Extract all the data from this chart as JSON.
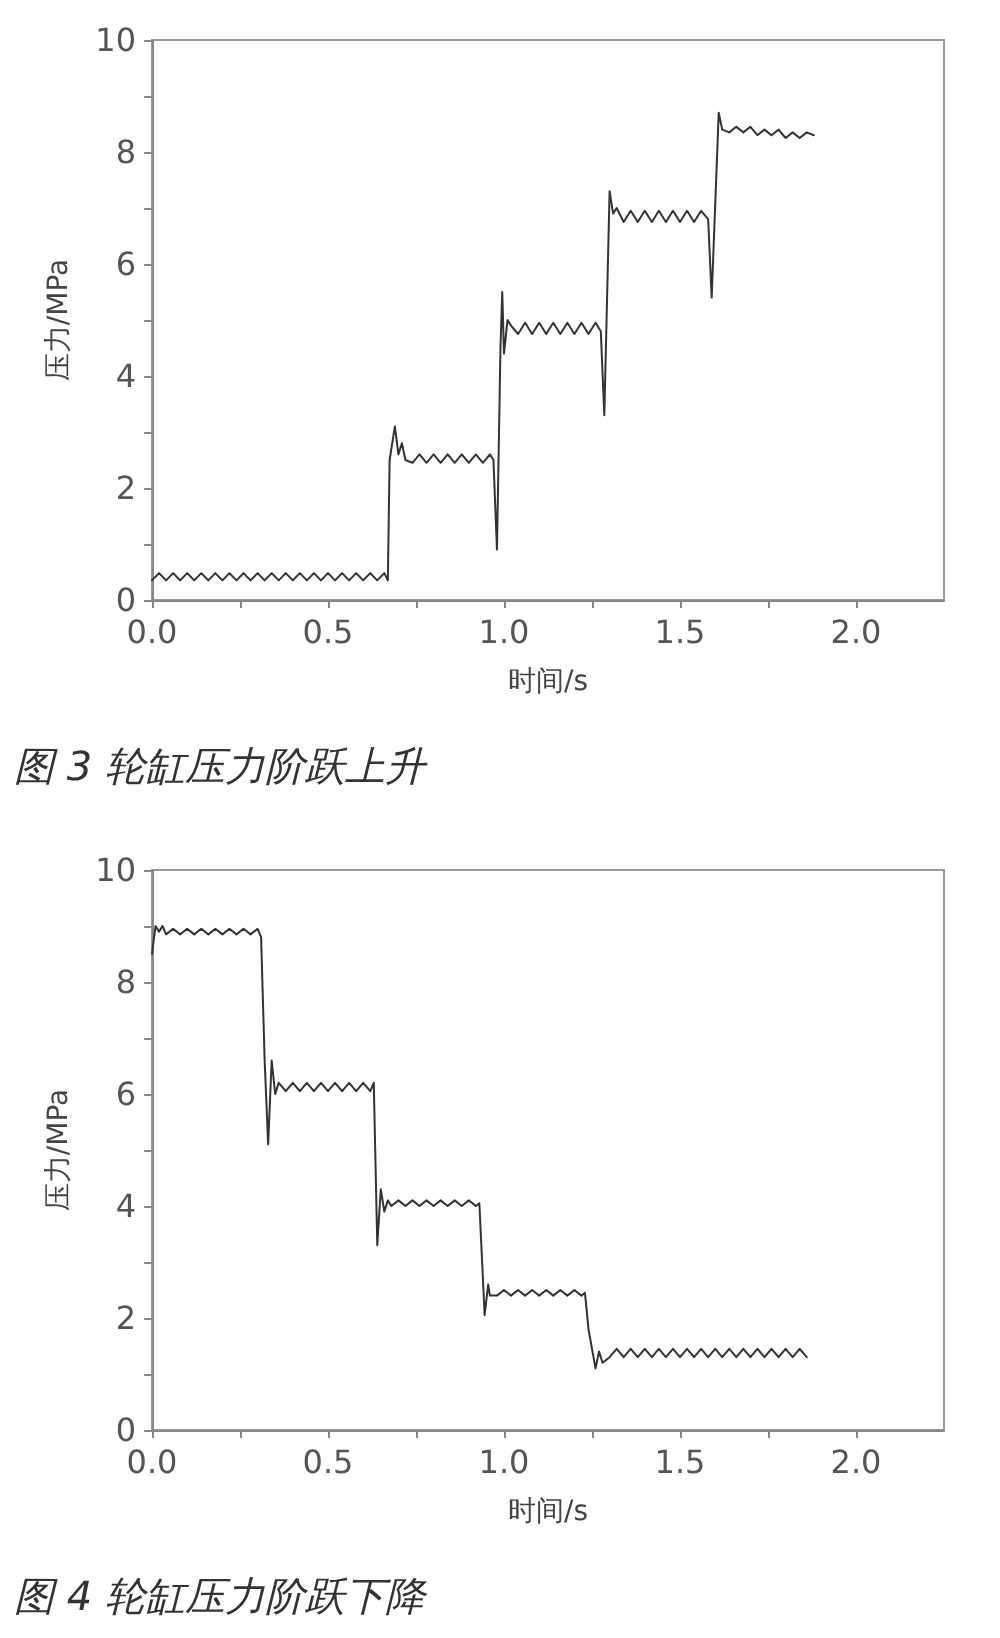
{
  "chart_data": [
    {
      "type": "line",
      "title": "图 3 轮缸压力阶跃上升",
      "xlabel": "时间/s",
      "ylabel": "压力/MPa",
      "xlim": [
        0,
        2.25
      ],
      "ylim": [
        0,
        10
      ],
      "xticks": [
        {
          "value": 0,
          "label": "0.0"
        },
        {
          "value": 0.25,
          "label": null
        },
        {
          "value": 0.5,
          "label": "0.5"
        },
        {
          "value": 0.75,
          "label": null
        },
        {
          "value": 1,
          "label": "1.0"
        },
        {
          "value": 1.25,
          "label": null
        },
        {
          "value": 1.5,
          "label": "1.5"
        },
        {
          "value": 1.75,
          "label": null
        },
        {
          "value": 2,
          "label": "2.0"
        }
      ],
      "yticks": [
        0,
        {
          "value": 1,
          "label": null
        },
        2,
        {
          "value": 3,
          "label": null
        },
        4,
        {
          "value": 5,
          "label": null
        },
        6,
        {
          "value": 7,
          "label": null
        },
        8,
        {
          "value": 9,
          "label": null
        },
        10
      ],
      "grid": false,
      "marker": "none",
      "line_style": "solid",
      "series": [
        {
          "color": "#333333",
          "x": [
            0,
            0.02,
            0.04,
            0.06,
            0.08,
            0.1,
            0.12,
            0.14,
            0.16,
            0.18,
            0.2,
            0.22,
            0.24,
            0.26,
            0.28,
            0.3,
            0.32,
            0.34,
            0.36,
            0.38,
            0.4,
            0.42,
            0.44,
            0.46,
            0.48,
            0.5,
            0.52,
            0.54,
            0.56,
            0.58,
            0.6,
            0.62,
            0.64,
            0.66,
            0.67,
            0.675,
            0.69,
            0.7,
            0.71,
            0.72,
            0.74,
            0.76,
            0.78,
            0.8,
            0.82,
            0.84,
            0.86,
            0.88,
            0.9,
            0.92,
            0.94,
            0.96,
            0.97,
            0.98,
            0.99,
            0.995,
            1.0,
            1.01,
            1.02,
            1.04,
            1.06,
            1.08,
            1.1,
            1.12,
            1.14,
            1.16,
            1.18,
            1.2,
            1.22,
            1.24,
            1.26,
            1.275,
            1.285,
            1.3,
            1.31,
            1.32,
            1.34,
            1.36,
            1.38,
            1.4,
            1.42,
            1.44,
            1.46,
            1.48,
            1.5,
            1.52,
            1.54,
            1.56,
            1.58,
            1.59,
            1.61,
            1.62,
            1.64,
            1.66,
            1.68,
            1.7,
            1.72,
            1.74,
            1.76,
            1.78,
            1.8,
            1.82,
            1.84,
            1.86,
            1.88
          ],
          "values": [
            0.35,
            0.48,
            0.35,
            0.48,
            0.35,
            0.48,
            0.35,
            0.48,
            0.35,
            0.48,
            0.35,
            0.48,
            0.35,
            0.48,
            0.35,
            0.48,
            0.35,
            0.48,
            0.35,
            0.48,
            0.35,
            0.48,
            0.35,
            0.48,
            0.35,
            0.48,
            0.35,
            0.48,
            0.35,
            0.48,
            0.35,
            0.48,
            0.35,
            0.48,
            0.35,
            2.5,
            3.1,
            2.6,
            2.8,
            2.5,
            2.45,
            2.6,
            2.45,
            2.6,
            2.45,
            2.6,
            2.45,
            2.6,
            2.45,
            2.6,
            2.45,
            2.6,
            2.5,
            0.9,
            4.5,
            5.5,
            4.4,
            5.0,
            4.9,
            4.75,
            4.95,
            4.75,
            4.95,
            4.75,
            4.95,
            4.75,
            4.95,
            4.75,
            4.95,
            4.75,
            4.95,
            4.8,
            3.3,
            7.3,
            6.9,
            7.0,
            6.75,
            6.95,
            6.75,
            6.95,
            6.75,
            6.95,
            6.75,
            6.95,
            6.75,
            6.95,
            6.75,
            6.95,
            6.8,
            5.4,
            8.7,
            8.4,
            8.35,
            8.45,
            8.35,
            8.45,
            8.3,
            8.4,
            8.3,
            8.4,
            8.25,
            8.35,
            8.25,
            8.35,
            8.3
          ]
        }
      ]
    },
    {
      "type": "line",
      "title": "图 4 轮缸压力阶跃下降",
      "xlabel": "时间/s",
      "ylabel": "压力/MPa",
      "xlim": [
        0,
        2.25
      ],
      "ylim": [
        0,
        10
      ],
      "xticks": [
        {
          "value": 0,
          "label": "0.0"
        },
        {
          "value": 0.25,
          "label": null
        },
        {
          "value": 0.5,
          "label": "0.5"
        },
        {
          "value": 0.75,
          "label": null
        },
        {
          "value": 1,
          "label": "1.0"
        },
        {
          "value": 1.25,
          "label": null
        },
        {
          "value": 1.5,
          "label": "1.5"
        },
        {
          "value": 1.75,
          "label": null
        },
        {
          "value": 2,
          "label": "2.0"
        }
      ],
      "yticks": [
        0,
        {
          "value": 1,
          "label": null
        },
        2,
        {
          "value": 3,
          "label": null
        },
        4,
        {
          "value": 5,
          "label": null
        },
        6,
        {
          "value": 7,
          "label": null
        },
        8,
        {
          "value": 9,
          "label": null
        },
        10
      ],
      "grid": false,
      "marker": "none",
      "line_style": "solid",
      "series": [
        {
          "color": "#333333",
          "x": [
            0,
            0.01,
            0.02,
            0.03,
            0.04,
            0.06,
            0.08,
            0.1,
            0.12,
            0.14,
            0.16,
            0.18,
            0.2,
            0.22,
            0.24,
            0.26,
            0.28,
            0.3,
            0.31,
            0.32,
            0.33,
            0.34,
            0.35,
            0.36,
            0.38,
            0.4,
            0.42,
            0.44,
            0.46,
            0.48,
            0.5,
            0.52,
            0.54,
            0.56,
            0.58,
            0.6,
            0.62,
            0.63,
            0.64,
            0.65,
            0.66,
            0.67,
            0.68,
            0.7,
            0.72,
            0.74,
            0.76,
            0.78,
            0.8,
            0.82,
            0.84,
            0.86,
            0.88,
            0.9,
            0.92,
            0.93,
            0.945,
            0.955,
            0.96,
            0.98,
            1.0,
            1.02,
            1.04,
            1.06,
            1.08,
            1.1,
            1.12,
            1.14,
            1.16,
            1.18,
            1.2,
            1.22,
            1.23,
            1.24,
            1.26,
            1.27,
            1.28,
            1.3,
            1.32,
            1.34,
            1.36,
            1.38,
            1.4,
            1.42,
            1.44,
            1.46,
            1.48,
            1.5,
            1.52,
            1.54,
            1.56,
            1.58,
            1.6,
            1.62,
            1.64,
            1.66,
            1.68,
            1.7,
            1.72,
            1.74,
            1.76,
            1.78,
            1.8,
            1.82,
            1.84,
            1.86
          ],
          "values": [
            8.5,
            9.0,
            8.9,
            9.0,
            8.85,
            8.95,
            8.85,
            8.95,
            8.85,
            8.95,
            8.85,
            8.95,
            8.85,
            8.95,
            8.85,
            8.95,
            8.85,
            8.95,
            8.8,
            6.6,
            5.1,
            6.6,
            6.0,
            6.2,
            6.05,
            6.2,
            6.05,
            6.2,
            6.05,
            6.2,
            6.05,
            6.2,
            6.05,
            6.2,
            6.05,
            6.2,
            6.05,
            6.2,
            3.3,
            4.3,
            3.9,
            4.1,
            4.0,
            4.1,
            4.0,
            4.1,
            4.0,
            4.1,
            4.0,
            4.1,
            4.0,
            4.1,
            4.0,
            4.1,
            4.0,
            4.05,
            2.05,
            2.6,
            2.4,
            2.4,
            2.5,
            2.4,
            2.5,
            2.4,
            2.5,
            2.4,
            2.5,
            2.4,
            2.5,
            2.4,
            2.5,
            2.4,
            2.45,
            1.8,
            1.1,
            1.4,
            1.2,
            1.3,
            1.45,
            1.3,
            1.45,
            1.3,
            1.45,
            1.3,
            1.45,
            1.3,
            1.45,
            1.3,
            1.45,
            1.3,
            1.45,
            1.3,
            1.45,
            1.3,
            1.45,
            1.3,
            1.45,
            1.3,
            1.45,
            1.3,
            1.45,
            1.3,
            1.45,
            1.3,
            1.45,
            1.3
          ]
        }
      ]
    }
  ]
}
